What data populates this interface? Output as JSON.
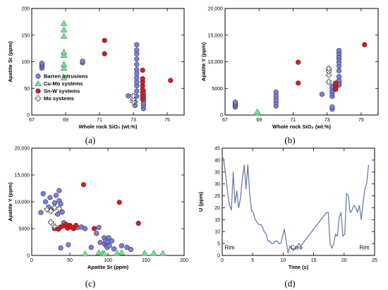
{
  "chart_data": [
    {
      "type": "scatter",
      "panel": "a",
      "caption": "(a)",
      "xlabel": "Whole rock SiO₂ (wt.%)",
      "ylabel": "Apatite Sr (ppm)",
      "xlim": [
        67,
        76
      ],
      "ylim": [
        0,
        200
      ],
      "xticks": [
        67,
        69,
        71,
        73,
        75
      ],
      "yticks": [
        0,
        50,
        100,
        150,
        200
      ],
      "legend_position": "lower-left",
      "series": [
        {
          "name": "Barren intrusions",
          "marker": "circle",
          "color": "#7b7fe6",
          "points": [
            [
              67.6,
              88
            ],
            [
              67.6,
              92
            ],
            [
              67.6,
              95
            ],
            [
              67.6,
              97
            ],
            [
              70.0,
              98
            ],
            [
              70.0,
              101
            ],
            [
              72.7,
              36
            ],
            [
              73.1,
              18
            ],
            [
              73.1,
              25
            ],
            [
              73.2,
              35
            ],
            [
              73.2,
              45
            ],
            [
              73.2,
              55
            ],
            [
              73.2,
              62
            ],
            [
              73.2,
              70
            ],
            [
              73.2,
              78
            ],
            [
              73.2,
              85
            ],
            [
              73.2,
              95
            ],
            [
              73.2,
              105
            ],
            [
              73.2,
              115
            ],
            [
              73.2,
              122
            ],
            [
              73.2,
              132
            ],
            [
              73.6,
              12
            ],
            [
              73.6,
              18
            ],
            [
              73.6,
              22
            ],
            [
              73.6,
              28
            ],
            [
              73.6,
              33
            ],
            [
              73.6,
              38
            ],
            [
              73.6,
              45
            ]
          ]
        },
        {
          "name": "Cu-Mo systems",
          "marker": "triangle",
          "color": "#7be29a",
          "points": [
            [
              68.9,
              70
            ],
            [
              68.9,
              88
            ],
            [
              68.9,
              95
            ],
            [
              68.9,
              112
            ],
            [
              68.9,
              118
            ],
            [
              68.9,
              148
            ],
            [
              68.9,
              160
            ],
            [
              68.9,
              172
            ]
          ]
        },
        {
          "name": "Sn-W systems",
          "marker": "circle",
          "color": "#e8141a",
          "points": [
            [
              71.3,
              115
            ],
            [
              71.3,
              140
            ],
            [
              73.55,
              30
            ],
            [
              73.55,
              36
            ],
            [
              73.55,
              42
            ],
            [
              73.55,
              48
            ],
            [
              73.55,
              55
            ],
            [
              73.55,
              62
            ],
            [
              73.55,
              68
            ],
            [
              73.55,
              84
            ],
            [
              75.2,
              65
            ]
          ]
        },
        {
          "name": "Mo systems",
          "marker": "cross",
          "color": "#ffffff",
          "points": [
            [
              73.0,
              25
            ],
            [
              73.0,
              30
            ],
            [
              73.0,
              36
            ]
          ]
        }
      ]
    },
    {
      "type": "scatter",
      "panel": "b",
      "caption": "(b)",
      "xlabel": "Whole rock SiO₂ (wt.%)",
      "ylabel": "Apatite Y (ppm)",
      "xlim": [
        67,
        76
      ],
      "ylim": [
        0,
        20000
      ],
      "xticks": [
        67,
        69,
        71,
        73,
        75
      ],
      "yticks": [
        0,
        5000,
        10000,
        15000,
        20000
      ],
      "ytick_labels": [
        "0",
        "5000",
        "10,000",
        "15,000",
        "20,000"
      ],
      "series": [
        {
          "name": "Barren intrusions",
          "marker": "circle",
          "color": "#7b7fe6",
          "points": [
            [
              67.6,
              1500
            ],
            [
              67.6,
              1800
            ],
            [
              67.6,
              2100
            ],
            [
              67.6,
              2400
            ],
            [
              70.0,
              1700
            ],
            [
              70.0,
              2300
            ],
            [
              70.0,
              2900
            ],
            [
              70.0,
              3600
            ],
            [
              70.0,
              4300
            ],
            [
              72.7,
              3900
            ],
            [
              73.3,
              1100
            ],
            [
              73.3,
              1500
            ],
            [
              73.3,
              3500
            ],
            [
              73.3,
              4000
            ],
            [
              73.3,
              4500
            ],
            [
              73.3,
              5000
            ],
            [
              73.3,
              5400
            ],
            [
              73.7,
              5600
            ],
            [
              73.7,
              6000
            ],
            [
              73.7,
              6500
            ],
            [
              73.7,
              7200
            ],
            [
              73.7,
              8300
            ],
            [
              73.7,
              9200
            ],
            [
              73.7,
              9900
            ],
            [
              73.7,
              10500
            ],
            [
              73.7,
              11000
            ],
            [
              73.7,
              11600
            ],
            [
              73.7,
              12100
            ]
          ]
        },
        {
          "name": "Cu-Mo systems",
          "marker": "triangle",
          "color": "#7be29a",
          "points": [
            [
              68.9,
              300
            ],
            [
              68.9,
              600
            ]
          ]
        },
        {
          "name": "Sn-W systems",
          "marker": "circle",
          "color": "#e8141a",
          "points": [
            [
              71.3,
              6000
            ],
            [
              71.3,
              9900
            ],
            [
              73.5,
              4800
            ],
            [
              73.5,
              5200
            ],
            [
              73.5,
              5700
            ],
            [
              73.5,
              6000
            ],
            [
              75.2,
              13200
            ]
          ]
        },
        {
          "name": "Mo systems",
          "marker": "cross",
          "color": "#ffffff",
          "points": [
            [
              73.1,
              6200
            ],
            [
              73.1,
              7500
            ],
            [
              73.1,
              8200
            ],
            [
              73.1,
              8700
            ]
          ]
        }
      ]
    },
    {
      "type": "scatter",
      "panel": "c",
      "caption": "(c)",
      "xlabel": "Apatite Sr (ppm)",
      "ylabel": "Apatite Y (ppm)",
      "xlim": [
        0,
        200
      ],
      "ylim": [
        0,
        20000
      ],
      "xticks": [
        0,
        50,
        100,
        150,
        200
      ],
      "yticks": [
        0,
        5000,
        10000,
        15000,
        20000
      ],
      "ytick_labels": [
        "0",
        "5000",
        "10,000",
        "15,000",
        "20,000"
      ],
      "series": [
        {
          "name": "Barren intrusions",
          "marker": "circle",
          "color": "#7b7fe6",
          "points": [
            [
              12,
              8000
            ],
            [
              15,
              11500
            ],
            [
              18,
              10000
            ],
            [
              22,
              9000
            ],
            [
              24,
              10800
            ],
            [
              28,
              8700
            ],
            [
              30,
              9800
            ],
            [
              32,
              11200
            ],
            [
              34,
              7700
            ],
            [
              36,
              12100
            ],
            [
              36,
              10200
            ],
            [
              38,
              9600
            ],
            [
              40,
              8100
            ],
            [
              42,
              6100
            ],
            [
              45,
              5500
            ],
            [
              48,
              5200
            ],
            [
              55,
              5000
            ],
            [
              60,
              5200
            ],
            [
              65,
              5300
            ],
            [
              70,
              5000
            ],
            [
              78,
              1500
            ],
            [
              85,
              4100
            ],
            [
              88,
              5200
            ],
            [
              90,
              2400
            ],
            [
              95,
              3300
            ],
            [
              96,
              2100
            ],
            [
              97,
              2700
            ],
            [
              98,
              1800
            ],
            [
              99,
              1500
            ],
            [
              100,
              2500
            ],
            [
              101,
              3300
            ],
            [
              102,
              1800
            ],
            [
              105,
              2700
            ],
            [
              108,
              1200
            ],
            [
              118,
              1800
            ],
            [
              125,
              1500
            ],
            [
              130,
              1100
            ],
            [
              38,
              1400
            ],
            [
              48,
              2000
            ]
          ]
        },
        {
          "name": "Cu-Mo systems",
          "marker": "triangle",
          "color": "#7be29a",
          "points": [
            [
              70,
              300
            ],
            [
              88,
              500
            ],
            [
              93,
              400
            ],
            [
              95,
              300
            ],
            [
              112,
              400
            ],
            [
              118,
              500
            ],
            [
              148,
              400
            ],
            [
              160,
              400
            ],
            [
              172,
              400
            ]
          ]
        },
        {
          "name": "Sn-W systems",
          "marker": "circle",
          "color": "#e8141a",
          "points": [
            [
              30,
              5000
            ],
            [
              35,
              4900
            ],
            [
              38,
              5300
            ],
            [
              42,
              5500
            ],
            [
              45,
              5800
            ],
            [
              47,
              5100
            ],
            [
              50,
              5600
            ],
            [
              52,
              5300
            ],
            [
              55,
              5100
            ],
            [
              58,
              5600
            ],
            [
              68,
              13200
            ],
            [
              82,
              5000
            ],
            [
              115,
              9900
            ],
            [
              140,
              6000
            ]
          ]
        },
        {
          "name": "Mo systems",
          "marker": "cross",
          "color": "#ffffff",
          "points": [
            [
              20,
              8600
            ],
            [
              25,
              8300
            ],
            [
              30,
              8900
            ],
            [
              36,
              8700
            ],
            [
              25,
              6200
            ],
            [
              30,
              5400
            ]
          ]
        }
      ]
    },
    {
      "type": "line",
      "panel": "d",
      "caption": "(d)",
      "xlabel": "Time (s)",
      "ylabel": "U (ppm)",
      "xlim": [
        0,
        25
      ],
      "ylim": [
        0,
        45
      ],
      "xticks": [
        0,
        5,
        10,
        15,
        20,
        25
      ],
      "yticks": [
        0,
        5,
        10,
        15,
        20,
        25,
        30,
        35,
        40,
        45
      ],
      "annotations": [
        {
          "text": "Rim",
          "x": 0.4,
          "y": 2.5
        },
        {
          "text": "Core",
          "x": 11.2,
          "y": 2.5
        },
        {
          "text": "Rim",
          "x": 22.5,
          "y": 2.5
        }
      ],
      "series": [
        {
          "color": "#6b7ea8",
          "x": [
            0,
            0.3,
            0.6,
            0.9,
            1.2,
            1.5,
            1.8,
            2.1,
            2.4,
            2.7,
            3.0,
            3.3,
            3.6,
            3.9,
            4.2,
            4.5,
            4.8,
            5.1,
            5.4,
            5.7,
            6.0,
            6.3,
            6.6,
            6.9,
            7.2,
            7.5,
            7.8,
            8.1,
            8.4,
            8.7,
            9.0,
            9.3,
            9.6,
            9.9,
            10.2,
            10.5,
            10.8,
            11.1,
            11.4,
            11.7,
            12.0,
            12.3,
            12.6,
            12.9,
            13.2,
            13.5,
            13.8,
            14.1,
            14.4,
            14.7,
            15.0,
            15.3,
            15.6,
            15.9,
            16.2,
            16.5,
            16.8,
            17.1,
            17.4,
            17.7,
            18.0,
            18.3,
            18.6,
            18.9,
            19.2,
            19.5,
            19.8,
            20.1,
            20.4,
            20.7,
            21.0,
            21.3,
            21.6,
            21.9,
            22.2,
            22.5,
            22.8,
            23.1,
            23.4,
            23.7,
            24.0
          ],
          "y": [
            42,
            39,
            33,
            26,
            21,
            19,
            35,
            22,
            27,
            20,
            24,
            32,
            38,
            28,
            38,
            26,
            19,
            18,
            15,
            14,
            13,
            13,
            12,
            10,
            9,
            6,
            6,
            5,
            5,
            6,
            6,
            5,
            5,
            8,
            11,
            6,
            1,
            4,
            3,
            2,
            3,
            4,
            5,
            4,
            5,
            6,
            7,
            8,
            9,
            10,
            11,
            12,
            13,
            14,
            15,
            16,
            17,
            18,
            18,
            5,
            3,
            5,
            9,
            8,
            16,
            18,
            8,
            9,
            26,
            25,
            18,
            19,
            21,
            20,
            18,
            21,
            15,
            22,
            28,
            30,
            38
          ]
        }
      ]
    }
  ]
}
